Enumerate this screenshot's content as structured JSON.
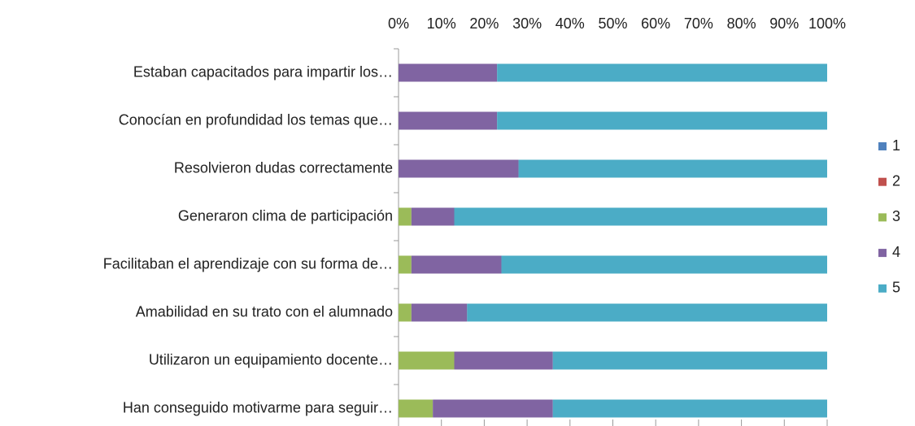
{
  "chart_data": {
    "type": "stacked_bar_horizontal",
    "categories": [
      "Estaban capacitados para impartir los…",
      "Conocían en profundidad los temas que…",
      "Resolvieron dudas correctamente",
      "Generaron clima de participación",
      "Facilitaban el aprendizaje con su forma de…",
      "Amabilidad en su trato con el alumnado",
      "Utilizaron un equipamiento docente…",
      "Han conseguido motivarme para seguir…"
    ],
    "series": [
      {
        "name": "1",
        "color": "#4f81bd",
        "values": [
          0,
          0,
          0,
          0,
          0,
          0,
          0,
          0
        ]
      },
      {
        "name": "2",
        "color": "#c0504d",
        "values": [
          0,
          0,
          0,
          0,
          0,
          0,
          0,
          0
        ]
      },
      {
        "name": "3",
        "color": "#9bbb59",
        "values": [
          0,
          0,
          0,
          3,
          3,
          3,
          13,
          8
        ]
      },
      {
        "name": "4",
        "color": "#8064a2",
        "values": [
          23,
          23,
          28,
          10,
          21,
          13,
          23,
          28
        ]
      },
      {
        "name": "5",
        "color": "#4bacc6",
        "values": [
          77,
          77,
          72,
          87,
          76,
          84,
          64,
          64
        ]
      }
    ],
    "xlim": [
      0,
      100
    ],
    "xticks": [
      {
        "value": 0,
        "label": "0%"
      },
      {
        "value": 10,
        "label": "10%"
      },
      {
        "value": 20,
        "label": "20%"
      },
      {
        "value": 30,
        "label": "30%"
      },
      {
        "value": 40,
        "label": "40%"
      },
      {
        "value": 50,
        "label": "50%"
      },
      {
        "value": 60,
        "label": "60%"
      },
      {
        "value": 70,
        "label": "70%"
      },
      {
        "value": 80,
        "label": "80%"
      },
      {
        "value": 90,
        "label": "90%"
      },
      {
        "value": 100,
        "label": "100%"
      }
    ],
    "grid": false,
    "legend": "right"
  }
}
